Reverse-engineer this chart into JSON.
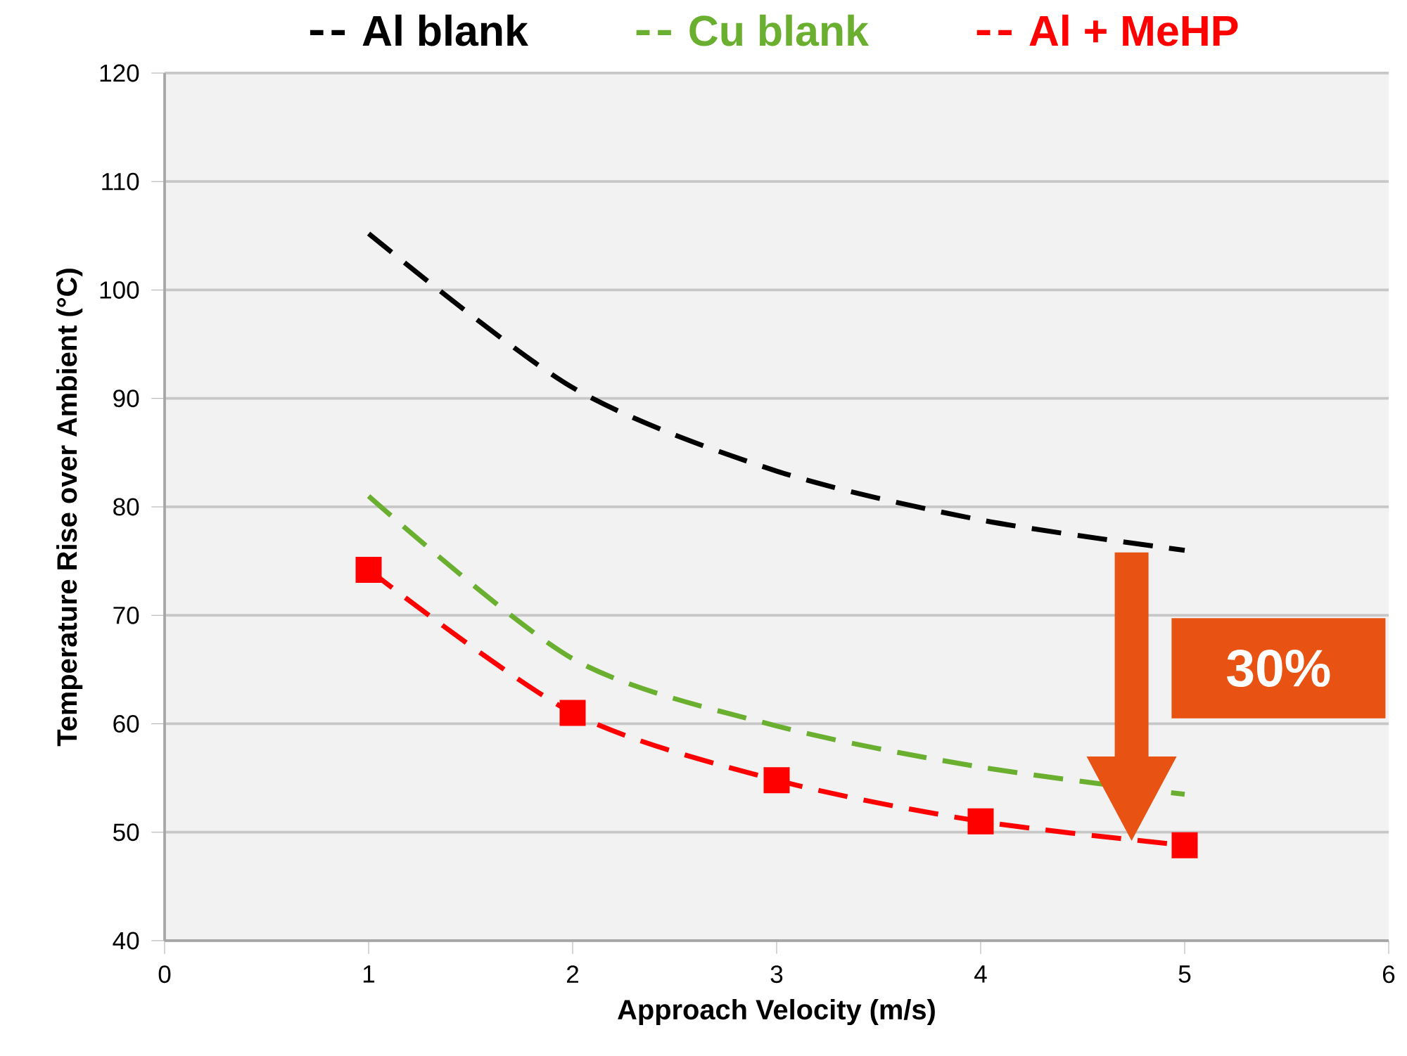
{
  "chart_data": {
    "type": "line",
    "xlabel": "Approach Velocity (m/s)",
    "ylabel": "Temperature Rise over Ambient (°C)",
    "x": [
      1,
      2,
      3,
      4,
      5
    ],
    "series": [
      {
        "name": "Al blank",
        "color": "#000000",
        "values": [
          105.2,
          91,
          83.3,
          78.8,
          76
        ]
      },
      {
        "name": "Cu blank",
        "color": "#6aaf2f",
        "values": [
          81,
          66,
          59.8,
          56,
          53.5
        ]
      },
      {
        "name": "Al + MeHP",
        "color": "#ff0000",
        "values": [
          74.2,
          61,
          54.8,
          51,
          48.8
        ],
        "marker": "square"
      }
    ],
    "xlim": [
      0,
      6
    ],
    "xticks": [
      0,
      1,
      2,
      3,
      4,
      5,
      6
    ],
    "ylim": [
      40,
      120
    ],
    "yticks": [
      40,
      50,
      60,
      70,
      80,
      90,
      100,
      110,
      120
    ],
    "grid": "y",
    "legend": "top",
    "line_style": "dashed",
    "annotations": [
      "30%"
    ]
  }
}
